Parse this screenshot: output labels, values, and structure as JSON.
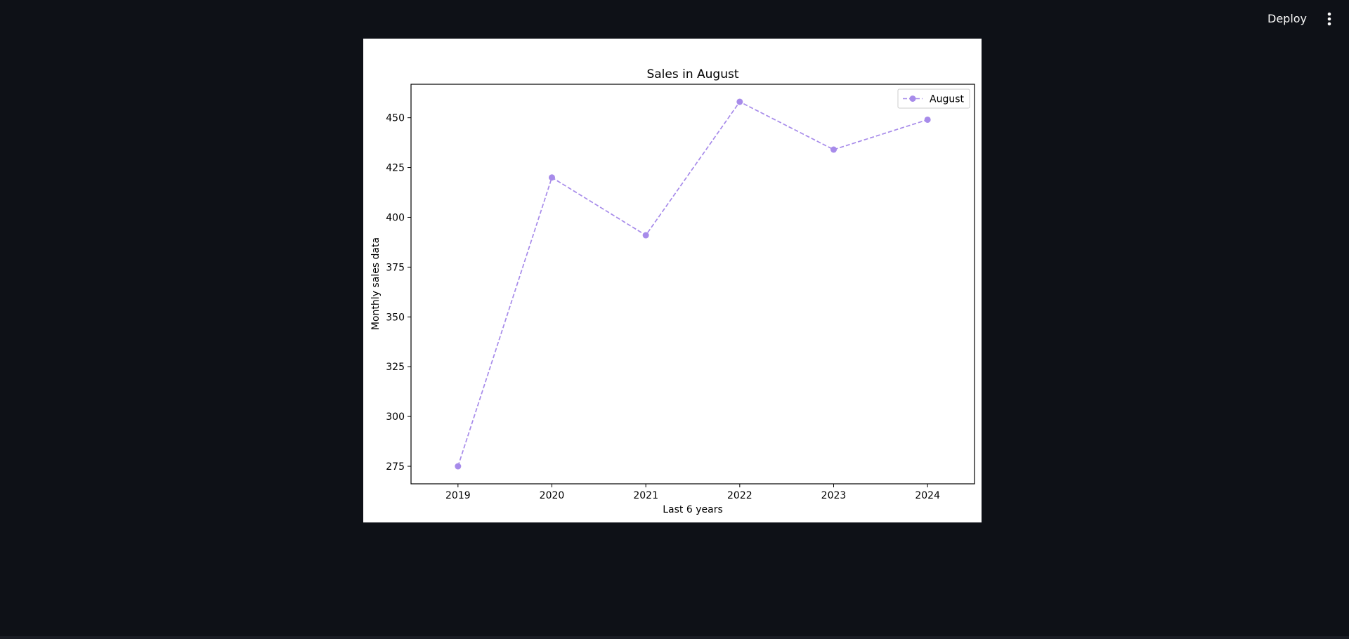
{
  "header": {
    "deploy_label": "Deploy",
    "menu_icon": "vertical-ellipsis-icon"
  },
  "chart_data": {
    "type": "line",
    "title": "Sales in August",
    "xlabel": "Last 6 years",
    "ylabel": "Monthly sales data",
    "x": [
      "2019",
      "2020",
      "2021",
      "2022",
      "2023",
      "2024"
    ],
    "series": [
      {
        "name": "August",
        "values": [
          275,
          420,
          391,
          458,
          434,
          449
        ],
        "color": "#a78bea",
        "linestyle": "dashed",
        "marker": "circle"
      }
    ],
    "yticks": [
      275,
      300,
      325,
      350,
      375,
      400,
      425,
      450
    ],
    "ylim": [
      266.2,
      466.8
    ],
    "grid": false,
    "legend_position": "top-right"
  }
}
